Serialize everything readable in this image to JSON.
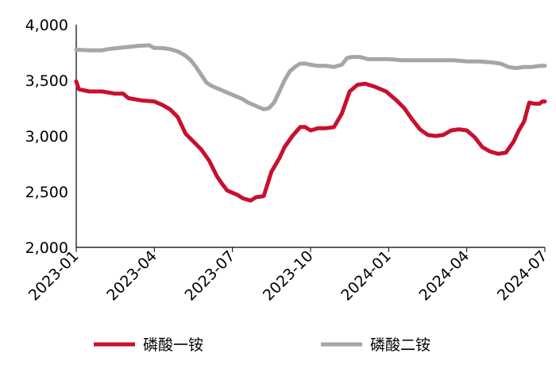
{
  "chart_data": {
    "type": "line",
    "title": "",
    "xlabel": "",
    "ylabel": "",
    "ylim": [
      2000,
      4000
    ],
    "yticks": [
      "2,000",
      "2,500",
      "3,000",
      "3,500",
      "4,000"
    ],
    "ytick_values": [
      2000,
      2500,
      3000,
      3500,
      4000
    ],
    "xticks": [
      "2023-01",
      "2023-04",
      "2023-07",
      "2023-10",
      "2024-01",
      "2024-04",
      "2024-07"
    ],
    "xtick_months": [
      0,
      3,
      6,
      9,
      12,
      15,
      18
    ],
    "xlim_months": [
      0,
      18
    ],
    "legend_position": "bottom",
    "grid": false,
    "series": [
      {
        "name": "磷酸一铵",
        "color": "#c8102e",
        "x": [
          0.0,
          0.1,
          0.5,
          1.0,
          1.5,
          1.8,
          2.0,
          2.5,
          3.0,
          3.3,
          3.6,
          3.9,
          4.2,
          4.5,
          4.8,
          5.1,
          5.4,
          5.6,
          5.8,
          6.0,
          6.2,
          6.4,
          6.7,
          6.9,
          7.2,
          7.5,
          7.8,
          8.0,
          8.3,
          8.6,
          8.8,
          9.0,
          9.3,
          9.6,
          9.9,
          10.2,
          10.5,
          10.8,
          11.1,
          11.5,
          11.9,
          12.3,
          12.6,
          12.9,
          13.2,
          13.5,
          13.8,
          14.1,
          14.4,
          14.7,
          15.0,
          15.3,
          15.6,
          15.9,
          16.2,
          16.5,
          16.8,
          17.0,
          17.2,
          17.4,
          17.6,
          17.8,
          17.9,
          18.0
        ],
        "values": [
          3490,
          3420,
          3400,
          3400,
          3380,
          3380,
          3340,
          3320,
          3310,
          3280,
          3240,
          3170,
          3020,
          2950,
          2880,
          2780,
          2640,
          2570,
          2510,
          2490,
          2470,
          2440,
          2420,
          2450,
          2460,
          2680,
          2800,
          2900,
          3000,
          3080,
          3080,
          3050,
          3070,
          3070,
          3080,
          3200,
          3400,
          3460,
          3470,
          3440,
          3400,
          3320,
          3250,
          3150,
          3060,
          3010,
          3000,
          3010,
          3050,
          3060,
          3050,
          2990,
          2900,
          2860,
          2840,
          2850,
          2950,
          3050,
          3130,
          3300,
          3290,
          3290,
          3310,
          3310
        ]
      },
      {
        "name": "磷酸二铵",
        "color": "#a6a6a6",
        "x": [
          0.0,
          0.5,
          1.0,
          1.2,
          1.6,
          2.0,
          2.4,
          2.8,
          3.0,
          3.3,
          3.6,
          3.9,
          4.2,
          4.4,
          4.6,
          4.8,
          5.0,
          5.2,
          5.5,
          5.8,
          6.1,
          6.4,
          6.6,
          6.9,
          7.2,
          7.4,
          7.6,
          7.8,
          8.0,
          8.2,
          8.4,
          8.6,
          8.8,
          9.0,
          9.3,
          9.6,
          9.9,
          10.2,
          10.4,
          10.6,
          10.9,
          11.2,
          11.5,
          12.0,
          12.5,
          13.0,
          13.5,
          14.0,
          14.5,
          15.0,
          15.5,
          16.0,
          16.3,
          16.6,
          16.9,
          17.2,
          17.5,
          17.8,
          18.0
        ],
        "values": [
          3775,
          3770,
          3770,
          3780,
          3790,
          3800,
          3810,
          3815,
          3790,
          3790,
          3780,
          3760,
          3720,
          3680,
          3620,
          3550,
          3480,
          3450,
          3420,
          3390,
          3360,
          3330,
          3300,
          3270,
          3240,
          3250,
          3300,
          3400,
          3500,
          3580,
          3620,
          3650,
          3650,
          3640,
          3630,
          3630,
          3620,
          3640,
          3700,
          3710,
          3710,
          3690,
          3690,
          3690,
          3680,
          3680,
          3680,
          3680,
          3680,
          3670,
          3670,
          3660,
          3650,
          3620,
          3610,
          3620,
          3620,
          3630,
          3630
        ]
      }
    ]
  }
}
